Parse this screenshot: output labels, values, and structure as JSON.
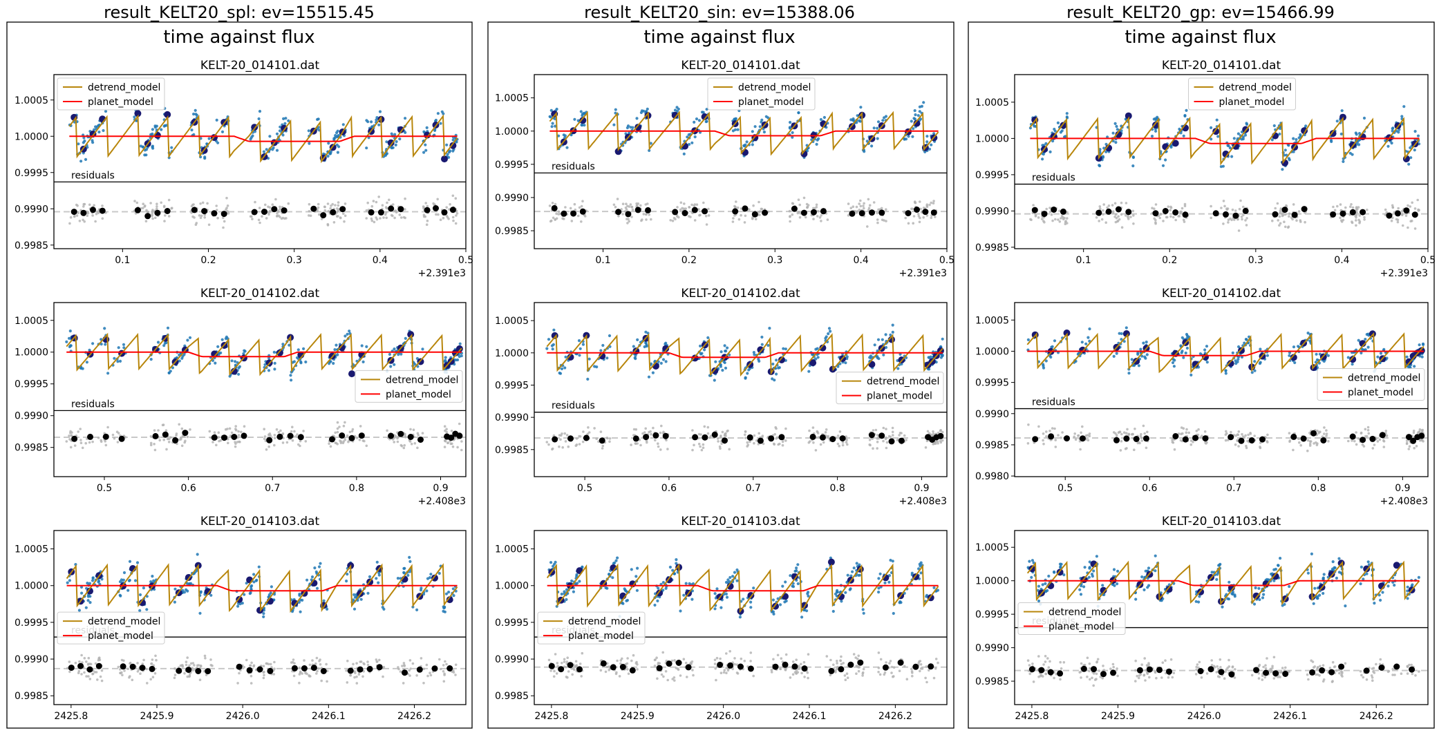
{
  "figure": {
    "colors": {
      "detrend": "#b8860b",
      "planet": "#ff0000",
      "data": "#1f77b4",
      "binned": "#191970",
      "residual_points": "#b0b0b0",
      "residual_binned": "#000000",
      "zero_line": "#c8c8c8"
    }
  },
  "chart_data": [
    {
      "type": "scatter",
      "column_title": "result_KELT20_spl: ev=15515.45",
      "subtitle": "time against flux",
      "legend_labels": [
        "detrend_model",
        "planet_model"
      ],
      "residuals_label": "residuals",
      "panels": [
        {
          "title": "KELT-20_014101.dat",
          "seed": 11,
          "legend": "upper-left",
          "planet_dip": [
            0.23,
            0.37
          ],
          "xlim": [
            0.02,
            0.5
          ],
          "x_ticks": [
            "0.1",
            "0.2",
            "0.3",
            "0.4",
            "0.5"
          ],
          "x_tick_values": [
            0.1,
            0.2,
            0.3,
            0.4,
            0.5
          ],
          "x_offset": "+2.391e3",
          "ylim": [
            0.99845,
            1.00085
          ],
          "y_ticks": [
            "0.9985",
            "0.9990",
            "0.9995",
            "1.0000",
            "1.0005"
          ],
          "y_tick_values": [
            0.9985,
            0.999,
            0.9995,
            1.0,
            1.0005
          ],
          "split": 0.99937,
          "resid_level": 0.99896,
          "segments": [
            [
              0.038,
              0.082
            ],
            [
              0.112,
              0.158
            ],
            [
              0.178,
              0.224
            ],
            [
              0.248,
              0.294
            ],
            [
              0.317,
              0.362
            ],
            [
              0.384,
              0.43
            ],
            [
              0.45,
              0.49
            ]
          ]
        },
        {
          "title": "KELT-20_014102.dat",
          "seed": 23,
          "legend": "lower-right",
          "planet_dip": [
            0.6,
            0.73
          ],
          "xlim": [
            0.44,
            0.93
          ],
          "x_ticks": [
            "0.5",
            "0.6",
            "0.7",
            "0.8",
            "0.9"
          ],
          "x_tick_values": [
            0.5,
            0.6,
            0.7,
            0.8,
            0.9
          ],
          "x_offset": "+2.408e3",
          "ylim": [
            0.99804,
            1.00078
          ],
          "y_ticks": [
            "0.9985",
            "0.9990",
            "0.9995",
            "1.0000",
            "1.0005"
          ],
          "y_tick_values": [
            0.9985,
            0.999,
            0.9995,
            1.0,
            1.0005
          ],
          "split": 0.99908,
          "resid_level": 0.99866,
          "segments": [
            [
              0.455,
              0.53
            ],
            [
              0.555,
              0.602
            ],
            [
              0.625,
              0.672
            ],
            [
              0.69,
              0.74
            ],
            [
              0.765,
              0.812
            ],
            [
              0.835,
              0.882
            ],
            [
              0.905,
              0.925
            ]
          ]
        },
        {
          "title": "KELT-20_014103.dat",
          "seed": 37,
          "legend": "lower-left",
          "planet_dip": [
            2425.97,
            2426.11
          ],
          "xlim": [
            2425.78,
            2426.26
          ],
          "x_ticks": [
            "2425.8",
            "2425.9",
            "2426.0",
            "2426.1",
            "2426.2"
          ],
          "x_tick_values": [
            2425.8,
            2425.9,
            2426.0,
            2426.1,
            2426.2
          ],
          "x_offset": "",
          "ylim": [
            0.99838,
            1.00075
          ],
          "y_ticks": [
            "0.9985",
            "0.9990",
            "0.9995",
            "1.0000",
            "1.0005"
          ],
          "y_tick_values": [
            0.9985,
            0.999,
            0.9995,
            1.0,
            1.0005
          ],
          "split": 0.9993,
          "resid_level": 0.99887,
          "segments": [
            [
              2425.795,
              2425.838
            ],
            [
              2425.855,
              2425.9
            ],
            [
              2425.92,
              2425.965
            ],
            [
              2425.99,
              2426.038
            ],
            [
              2426.055,
              2426.1
            ],
            [
              2426.12,
              2426.165
            ],
            [
              2426.18,
              2426.25
            ]
          ]
        }
      ]
    },
    {
      "type": "scatter",
      "column_title": "result_KELT20_sin: ev=15388.06",
      "subtitle": "time against flux",
      "legend_labels": [
        "detrend_model",
        "planet_model"
      ],
      "residuals_label": "residuals",
      "panels": [
        {
          "title": "KELT-20_014101.dat",
          "seed": 51,
          "legend": "upper-center",
          "planet_dip": [
            0.23,
            0.37
          ],
          "xlim": [
            0.02,
            0.5
          ],
          "x_ticks": [
            "0.1",
            "0.2",
            "0.3",
            "0.4",
            "0.5"
          ],
          "x_tick_values": [
            0.1,
            0.2,
            0.3,
            0.4,
            0.5
          ],
          "x_offset": "+2.391e3",
          "ylim": [
            0.99823,
            1.00085
          ],
          "y_ticks": [
            "0.9985",
            "0.9990",
            "0.9995",
            "1.0000",
            "1.0005"
          ],
          "y_tick_values": [
            0.9985,
            0.999,
            0.9995,
            1.0,
            1.0005
          ],
          "split": 0.99937,
          "resid_level": 0.99879,
          "segments": [
            [
              0.038,
              0.082
            ],
            [
              0.112,
              0.158
            ],
            [
              0.178,
              0.224
            ],
            [
              0.248,
              0.294
            ],
            [
              0.317,
              0.362
            ],
            [
              0.384,
              0.43
            ],
            [
              0.45,
              0.49
            ]
          ]
        },
        {
          "title": "KELT-20_014102.dat",
          "seed": 63,
          "legend": "lower-right",
          "planet_dip": [
            0.6,
            0.73
          ],
          "xlim": [
            0.44,
            0.93
          ],
          "x_ticks": [
            "0.5",
            "0.6",
            "0.7",
            "0.8",
            "0.9"
          ],
          "x_tick_values": [
            0.5,
            0.6,
            0.7,
            0.8,
            0.9
          ],
          "x_offset": "+2.408e3",
          "ylim": [
            0.99808,
            1.00078
          ],
          "y_ticks": [
            "0.9985",
            "0.9990",
            "0.9995",
            "1.0000",
            "1.0005"
          ],
          "y_tick_values": [
            0.9985,
            0.999,
            0.9995,
            1.0,
            1.0005
          ],
          "split": 0.99908,
          "resid_level": 0.99868,
          "segments": [
            [
              0.455,
              0.53
            ],
            [
              0.555,
              0.602
            ],
            [
              0.625,
              0.672
            ],
            [
              0.69,
              0.74
            ],
            [
              0.765,
              0.812
            ],
            [
              0.835,
              0.882
            ],
            [
              0.905,
              0.925
            ]
          ]
        },
        {
          "title": "KELT-20_014103.dat",
          "seed": 77,
          "legend": "lower-left",
          "planet_dip": [
            2425.97,
            2426.11
          ],
          "xlim": [
            2425.78,
            2426.26
          ],
          "x_ticks": [
            "2425.8",
            "2425.9",
            "2426.0",
            "2426.1",
            "2426.2"
          ],
          "x_tick_values": [
            2425.8,
            2425.9,
            2426.0,
            2426.1,
            2426.2
          ],
          "x_offset": "",
          "ylim": [
            0.99838,
            1.00075
          ],
          "y_ticks": [
            "0.9985",
            "0.9990",
            "0.9995",
            "1.0000",
            "1.0005"
          ],
          "y_tick_values": [
            0.9985,
            0.999,
            0.9995,
            1.0,
            1.0005
          ],
          "split": 0.9993,
          "resid_level": 0.99889,
          "segments": [
            [
              2425.795,
              2425.838
            ],
            [
              2425.855,
              2425.9
            ],
            [
              2425.92,
              2425.965
            ],
            [
              2425.99,
              2426.038
            ],
            [
              2426.055,
              2426.1
            ],
            [
              2426.12,
              2426.165
            ],
            [
              2426.18,
              2426.25
            ]
          ]
        }
      ]
    },
    {
      "type": "scatter",
      "column_title": "result_KELT20_gp: ev=15466.99",
      "subtitle": "time against flux",
      "legend_labels": [
        "detrend_model",
        "planet_model"
      ],
      "residuals_label": "residuals",
      "panels": [
        {
          "title": "KELT-20_014101.dat",
          "seed": 91,
          "legend": "upper-center",
          "planet_dip": [
            0.23,
            0.37
          ],
          "xlim": [
            0.02,
            0.5
          ],
          "x_ticks": [
            "0.1",
            "0.2",
            "0.3",
            "0.4",
            "0.5"
          ],
          "x_tick_values": [
            0.1,
            0.2,
            0.3,
            0.4,
            0.5
          ],
          "x_offset": "+2.391e3",
          "ylim": [
            0.99848,
            1.00088
          ],
          "y_ticks": [
            "0.9985",
            "0.9990",
            "0.9995",
            "1.0000",
            "1.0005"
          ],
          "y_tick_values": [
            0.9985,
            0.999,
            0.9995,
            1.0,
            1.0005
          ],
          "split": 0.99937,
          "resid_level": 0.99896,
          "segments": [
            [
              0.038,
              0.082
            ],
            [
              0.112,
              0.158
            ],
            [
              0.178,
              0.224
            ],
            [
              0.248,
              0.294
            ],
            [
              0.317,
              0.362
            ],
            [
              0.384,
              0.43
            ],
            [
              0.45,
              0.49
            ]
          ]
        },
        {
          "title": "KELT-20_014102.dat",
          "seed": 103,
          "legend": "lower-right",
          "planet_dip": [
            0.6,
            0.73
          ],
          "xlim": [
            0.44,
            0.93
          ],
          "x_ticks": [
            "0.5",
            "0.6",
            "0.7",
            "0.8",
            "0.9"
          ],
          "x_tick_values": [
            0.5,
            0.6,
            0.7,
            0.8,
            0.9
          ],
          "x_offset": "+2.408e3",
          "ylim": [
            0.99799,
            1.00078
          ],
          "y_ticks": [
            "0.9980",
            "0.9985",
            "0.9990",
            "0.9995",
            "1.0000",
            "1.0005"
          ],
          "y_tick_values": [
            0.998,
            0.9985,
            0.999,
            0.9995,
            1.0,
            1.0005
          ],
          "split": 0.99908,
          "resid_level": 0.99861,
          "segments": [
            [
              0.455,
              0.53
            ],
            [
              0.555,
              0.602
            ],
            [
              0.625,
              0.672
            ],
            [
              0.69,
              0.74
            ],
            [
              0.765,
              0.812
            ],
            [
              0.835,
              0.882
            ],
            [
              0.905,
              0.925
            ]
          ]
        },
        {
          "title": "KELT-20_014103.dat",
          "seed": 117,
          "legend": "lower-left",
          "planet_dip": [
            2425.97,
            2426.11
          ],
          "xlim": [
            2425.78,
            2426.26
          ],
          "x_ticks": [
            "2425.8",
            "2425.9",
            "2426.0",
            "2426.1",
            "2426.2"
          ],
          "x_tick_values": [
            2425.8,
            2425.9,
            2426.0,
            2426.1,
            2426.2
          ],
          "x_offset": "",
          "ylim": [
            0.99815,
            1.00075
          ],
          "y_ticks": [
            "0.9985",
            "0.9990",
            "0.9995",
            "1.0000",
            "1.0005"
          ],
          "y_tick_values": [
            0.9985,
            0.999,
            0.9995,
            1.0,
            1.0005
          ],
          "split": 0.9993,
          "resid_level": 0.99866,
          "segments": [
            [
              2425.795,
              2425.838
            ],
            [
              2425.855,
              2425.9
            ],
            [
              2425.92,
              2425.965
            ],
            [
              2425.99,
              2426.038
            ],
            [
              2426.055,
              2426.1
            ],
            [
              2426.12,
              2426.165
            ],
            [
              2426.18,
              2426.25
            ]
          ]
        }
      ]
    }
  ]
}
